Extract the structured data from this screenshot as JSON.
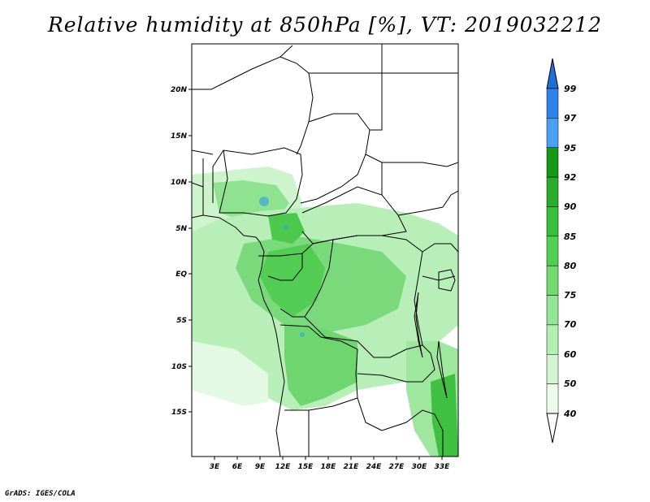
{
  "title": "Relative humidity at 850hPa [%], VT: 2019032212",
  "credit": "GrADS: IGES/COLA",
  "map": {
    "y_labels": [
      "20N",
      "15N",
      "10N",
      "5N",
      "EQ",
      "5S",
      "10S",
      "15S"
    ],
    "x_labels": [
      "3E",
      "6E",
      "9E",
      "12E",
      "15E",
      "18E",
      "21E",
      "24E",
      "27E",
      "30E",
      "33E"
    ]
  },
  "colorbar": {
    "labels": [
      "99",
      "97",
      "95",
      "92",
      "90",
      "85",
      "80",
      "75",
      "70",
      "60",
      "50",
      "40"
    ],
    "colors": [
      "#1f6fd8",
      "#2f82e8",
      "#4aa0f0",
      "#159a15",
      "#29ae29",
      "#38c038",
      "#52d052",
      "#70dc70",
      "#92e592",
      "#b2efb2",
      "#d2f6d2",
      "#eefcee"
    ]
  }
}
